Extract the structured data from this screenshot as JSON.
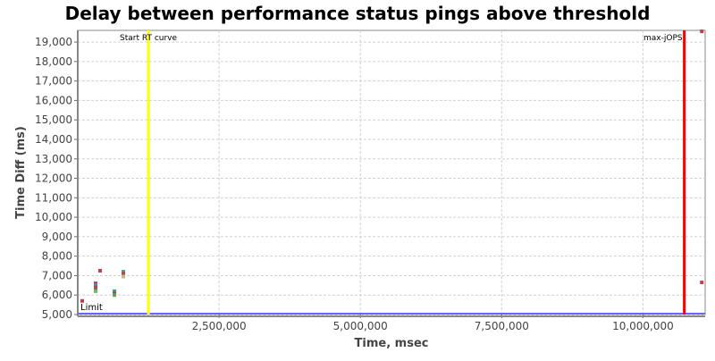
{
  "chart_data": {
    "type": "scatter",
    "title": "Delay between performance status pings above threshold",
    "xlabel": "Time, msec",
    "ylabel": "Time Diff (ms)",
    "xlim": [
      0,
      11100000
    ],
    "ylim": [
      5000,
      19600
    ],
    "grid": true,
    "x_ticks": [
      2500000,
      5000000,
      7500000,
      10000000
    ],
    "x_tick_labels": [
      "2,500,000",
      "5,000,000",
      "7,500,000",
      "10,000,000"
    ],
    "y_ticks": [
      5000,
      6000,
      7000,
      8000,
      9000,
      10000,
      11000,
      12000,
      13000,
      14000,
      15000,
      16000,
      17000,
      18000,
      19000
    ],
    "y_tick_labels": [
      "5,000",
      "6,000",
      "7,000",
      "8,000",
      "9,000",
      "10,000",
      "11,000",
      "12,000",
      "13,000",
      "14,000",
      "15,000",
      "16,000",
      "17,000",
      "18,000",
      "19,000"
    ],
    "reference_lines": [
      {
        "label": "Limit",
        "axis": "y",
        "value": 5000,
        "color": "#6666ff"
      },
      {
        "label": "Start RT curve",
        "axis": "x",
        "value": 1250000,
        "color": "#ffff00"
      },
      {
        "label": "max-jOPS",
        "axis": "x",
        "value": 10730000,
        "color": "#ff0000"
      }
    ],
    "points": [
      {
        "x": 79000,
        "y": 5700,
        "color": "#c04050"
      },
      {
        "x": 316000,
        "y": 6600,
        "color": "#c0307a"
      },
      {
        "x": 316000,
        "y": 6500,
        "color": "#40a0a0"
      },
      {
        "x": 316000,
        "y": 6400,
        "color": "#c04050"
      },
      {
        "x": 316000,
        "y": 6300,
        "color": "#806060"
      },
      {
        "x": 316000,
        "y": 6200,
        "color": "#60c060"
      },
      {
        "x": 396000,
        "y": 7250,
        "color": "#c04050"
      },
      {
        "x": 649000,
        "y": 6200,
        "color": "#40a0a0"
      },
      {
        "x": 649000,
        "y": 6100,
        "color": "#c04050"
      },
      {
        "x": 649000,
        "y": 6000,
        "color": "#60a060"
      },
      {
        "x": 807000,
        "y": 7200,
        "color": "#40a0a0"
      },
      {
        "x": 807000,
        "y": 7100,
        "color": "#c04050"
      },
      {
        "x": 807000,
        "y": 7000,
        "color": "#806060"
      },
      {
        "x": 807000,
        "y": 6950,
        "color": "#c0c080"
      },
      {
        "x": 11040000,
        "y": 6650,
        "color": "#c04050"
      },
      {
        "x": 11040000,
        "y": 19550,
        "color": "#c04050"
      }
    ]
  }
}
